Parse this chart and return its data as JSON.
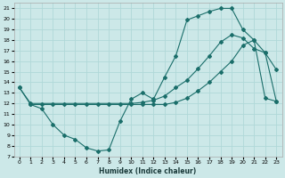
{
  "xlabel": "Humidex (Indice chaleur)",
  "bg_color": "#cce8e8",
  "grid_color": "#b0d8d8",
  "line_color": "#1a6e6a",
  "xlim": [
    -0.5,
    23.5
  ],
  "ylim": [
    7,
    21.5
  ],
  "xticks": [
    0,
    1,
    2,
    3,
    4,
    5,
    6,
    7,
    8,
    9,
    10,
    11,
    12,
    13,
    14,
    15,
    16,
    17,
    18,
    19,
    20,
    21,
    22,
    23
  ],
  "yticks": [
    7,
    8,
    9,
    10,
    11,
    12,
    13,
    14,
    15,
    16,
    17,
    18,
    19,
    20,
    21
  ],
  "curve1_x": [
    0,
    1,
    2,
    3,
    4,
    5,
    6,
    7,
    8,
    9,
    10,
    11,
    12,
    13,
    14,
    15,
    16,
    17,
    18,
    19,
    20,
    21,
    22,
    23
  ],
  "curve1_y": [
    13.5,
    11.9,
    11.5,
    10.0,
    9.0,
    8.6,
    7.8,
    7.5,
    7.6,
    10.3,
    12.4,
    13.0,
    12.4,
    14.5,
    16.5,
    19.9,
    20.3,
    20.7,
    21.0,
    21.0,
    19.0,
    18.0,
    16.8,
    15.2
  ],
  "curve2_x": [
    0,
    1,
    10,
    11,
    12,
    13,
    14,
    15,
    16,
    17,
    18,
    19,
    20,
    21,
    22,
    23
  ],
  "curve2_y": [
    13.5,
    12.0,
    12.0,
    12.1,
    12.3,
    12.7,
    13.5,
    14.2,
    15.3,
    16.5,
    17.8,
    18.5,
    18.2,
    17.2,
    16.8,
    12.2
  ],
  "curve3_x": [
    1,
    2,
    3,
    4,
    5,
    6,
    7,
    8,
    9,
    10,
    11,
    12,
    13,
    14,
    15,
    16,
    17,
    18,
    19,
    20,
    21,
    22,
    23
  ],
  "curve3_y": [
    11.9,
    11.9,
    11.9,
    11.9,
    11.9,
    11.9,
    11.9,
    11.9,
    11.9,
    11.9,
    11.9,
    11.9,
    11.9,
    12.1,
    12.5,
    13.2,
    14.0,
    15.0,
    16.0,
    17.5,
    18.0,
    12.5,
    12.2
  ]
}
